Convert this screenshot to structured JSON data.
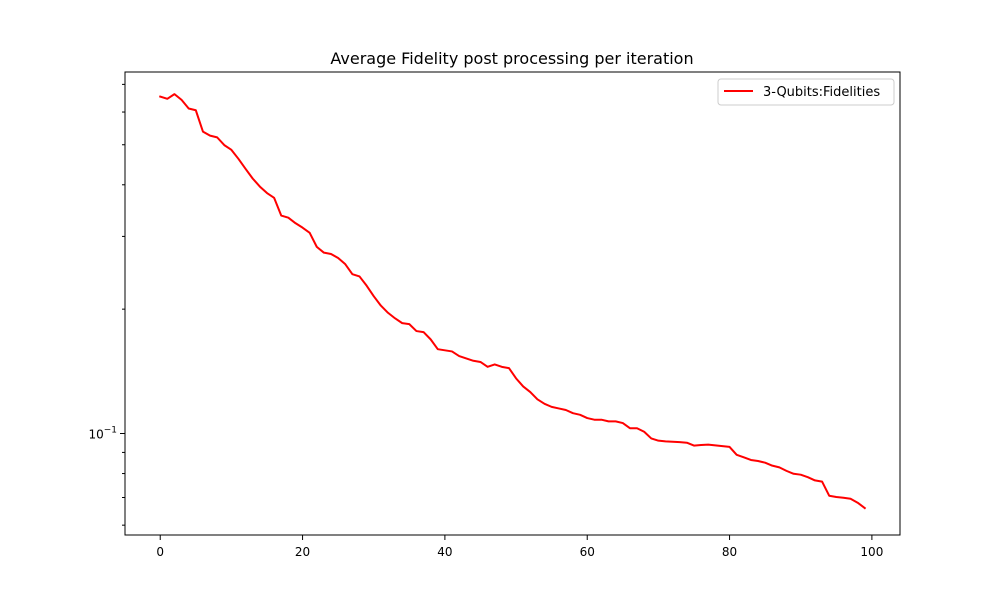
{
  "chart_data": {
    "type": "line",
    "title": "Average Fidelity post processing per iteration",
    "xlabel": "",
    "ylabel": "",
    "xlim": [
      -4.95,
      103.95
    ],
    "ylim": [
      0.0568,
      0.75
    ],
    "yscale": "log",
    "grid": false,
    "legend_position": "top-right",
    "x_ticks": [
      {
        "value": 0,
        "label": "0"
      },
      {
        "value": 20,
        "label": "20"
      },
      {
        "value": 40,
        "label": "40"
      },
      {
        "value": 60,
        "label": "60"
      },
      {
        "value": 80,
        "label": "80"
      },
      {
        "value": 100,
        "label": "100"
      }
    ],
    "y_major_ticks": [
      {
        "value": 0.1,
        "label_base": "10",
        "label_exp": "−1"
      }
    ],
    "y_minor_ticks": [
      0.06,
      0.07,
      0.08,
      0.09,
      0.2,
      0.3,
      0.4,
      0.5,
      0.6,
      0.7
    ],
    "series": [
      {
        "name": "3-Qubits:Fidelities",
        "color": "#ff0000",
        "x": [
          0,
          1,
          2,
          3,
          4,
          5,
          6,
          7,
          8,
          9,
          10,
          11,
          12,
          13,
          14,
          15,
          16,
          17,
          18,
          19,
          20,
          21,
          22,
          23,
          24,
          25,
          26,
          27,
          28,
          29,
          30,
          31,
          32,
          33,
          34,
          35,
          36,
          37,
          38,
          39,
          40,
          41,
          42,
          43,
          44,
          45,
          46,
          47,
          48,
          49,
          50,
          51,
          52,
          53,
          54,
          55,
          56,
          57,
          58,
          59,
          60,
          61,
          62,
          63,
          64,
          65,
          66,
          67,
          68,
          69,
          70,
          71,
          72,
          73,
          74,
          75,
          76,
          77,
          78,
          79,
          80,
          81,
          82,
          83,
          84,
          85,
          86,
          87,
          88,
          89,
          90,
          91,
          92,
          93,
          94,
          95,
          96,
          97,
          98,
          99
        ],
        "y": [
          0.654,
          0.646,
          0.663,
          0.642,
          0.612,
          0.606,
          0.538,
          0.526,
          0.521,
          0.499,
          0.486,
          0.462,
          0.437,
          0.414,
          0.396,
          0.382,
          0.372,
          0.337,
          0.333,
          0.323,
          0.315,
          0.306,
          0.283,
          0.274,
          0.272,
          0.266,
          0.257,
          0.243,
          0.24,
          0.228,
          0.215,
          0.204,
          0.196,
          0.19,
          0.185,
          0.184,
          0.177,
          0.176,
          0.169,
          0.16,
          0.159,
          0.158,
          0.154,
          0.152,
          0.15,
          0.149,
          0.145,
          0.147,
          0.145,
          0.144,
          0.136,
          0.13,
          0.126,
          0.121,
          0.118,
          0.116,
          0.115,
          0.114,
          0.112,
          0.111,
          0.109,
          0.108,
          0.108,
          0.107,
          0.107,
          0.106,
          0.103,
          0.103,
          0.101,
          0.0973,
          0.0961,
          0.0957,
          0.0955,
          0.0953,
          0.095,
          0.0935,
          0.0938,
          0.094,
          0.0936,
          0.0932,
          0.0928,
          0.0888,
          0.0876,
          0.0863,
          0.0858,
          0.085,
          0.0836,
          0.0828,
          0.0812,
          0.0799,
          0.0795,
          0.0784,
          0.077,
          0.0765,
          0.0707,
          0.0702,
          0.0699,
          0.0695,
          0.068,
          0.066
        ]
      }
    ]
  }
}
